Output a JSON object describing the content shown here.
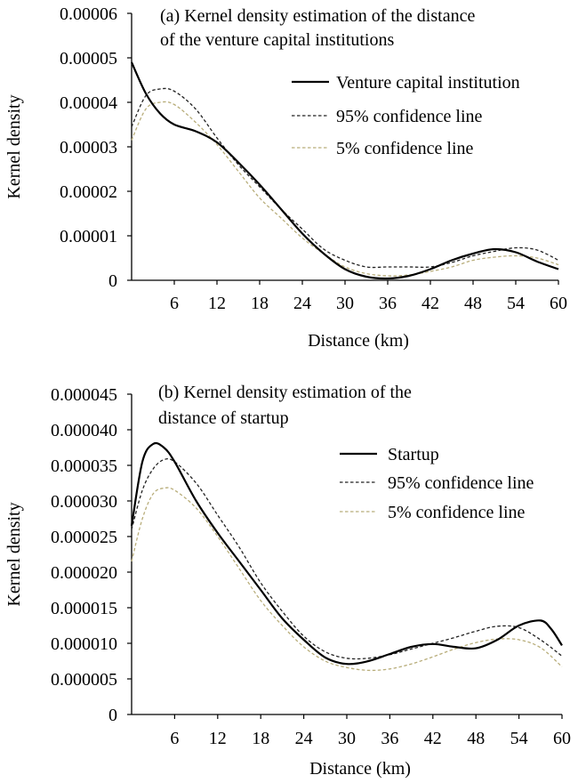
{
  "chart_data": [
    {
      "type": "line",
      "title_lines": [
        "(a) Kernel density estimation of the distance",
        "of the venture capital institutions"
      ],
      "xlabel": "Distance (km)",
      "ylabel": "Kernel density",
      "xlim": [
        0,
        60
      ],
      "ylim": [
        0,
        6e-05
      ],
      "x_ticks": [
        "6",
        "12",
        "18",
        "24",
        "30",
        "36",
        "42",
        "48",
        "54",
        "60"
      ],
      "y_ticks": [
        "0",
        "0.00001",
        "0.00002",
        "0.00003",
        "0.00004",
        "0.00005",
        "0.00006"
      ],
      "grid": false,
      "legend_position": "top-right",
      "series": [
        {
          "name": "Venture capital institution",
          "color": "#000000",
          "style": "solid",
          "x": [
            0,
            2,
            4,
            6,
            9,
            12,
            15,
            18,
            21,
            24,
            27,
            30,
            33,
            36,
            39,
            42,
            45,
            48,
            51,
            54,
            57,
            60
          ],
          "y": [
            4.9e-05,
            4.2e-05,
            3.75e-05,
            3.5e-05,
            3.35e-05,
            3.1e-05,
            2.65e-05,
            2.15e-05,
            1.6e-05,
            1.05e-05,
            6e-06,
            2.5e-06,
            8e-07,
            4e-07,
            1e-06,
            2.5e-06,
            4.5e-06,
            6e-06,
            7e-06,
            6.3e-06,
            4.2e-06,
            2.5e-06
          ]
        },
        {
          "name": "95% confidence line",
          "color": "#222222",
          "style": "dashed",
          "x": [
            0,
            2,
            4,
            6,
            9,
            12,
            15,
            18,
            21,
            24,
            27,
            30,
            33,
            36,
            39,
            42,
            45,
            48,
            51,
            54,
            57,
            60
          ],
          "y": [
            3.45e-05,
            4.15e-05,
            4.3e-05,
            4.25e-05,
            3.85e-05,
            3.2e-05,
            2.6e-05,
            2.1e-05,
            1.6e-05,
            1.15e-05,
            7e-06,
            4.5e-06,
            3e-06,
            3e-06,
            3e-06,
            3e-06,
            4e-06,
            5.5e-06,
            6.5e-06,
            7.3e-06,
            6.8e-06,
            4.5e-06
          ]
        },
        {
          "name": "5% confidence line",
          "color": "#b8ad7a",
          "style": "dashed",
          "x": [
            0,
            2,
            4,
            6,
            9,
            12,
            15,
            18,
            21,
            24,
            27,
            30,
            33,
            36,
            39,
            42,
            45,
            48,
            51,
            54,
            57,
            60
          ],
          "y": [
            3.15e-05,
            3.85e-05,
            4e-05,
            3.95e-05,
            3.55e-05,
            3.05e-05,
            2.45e-05,
            1.85e-05,
            1.4e-05,
            9.5e-06,
            6e-06,
            3e-06,
            1.5e-06,
            1e-06,
            1.2e-06,
            2e-06,
            3e-06,
            4.5e-06,
            5.2e-06,
            5.5e-06,
            5e-06,
            3.5e-06
          ]
        }
      ]
    },
    {
      "type": "line",
      "title_lines": [
        "(b) Kernel density estimation of the",
        "distance of startup"
      ],
      "xlabel": "Distance (km)",
      "ylabel": "Kernel density",
      "xlim": [
        0,
        60
      ],
      "ylim": [
        0,
        4.5e-05
      ],
      "x_ticks": [
        "6",
        "12",
        "18",
        "24",
        "30",
        "36",
        "42",
        "48",
        "54",
        "60"
      ],
      "y_ticks": [
        "0",
        "0.000005",
        "0.000010",
        "0.000015",
        "0.000020",
        "0.000025",
        "0.000030",
        "0.000035",
        "0.000040",
        "0.000045"
      ],
      "grid": false,
      "legend_position": "top-right",
      "series": [
        {
          "name": "Startup",
          "color": "#000000",
          "style": "solid",
          "x": [
            0,
            1.5,
            3,
            4.5,
            6,
            9,
            12,
            15,
            18,
            21,
            24,
            27,
            30,
            33,
            36,
            39,
            42,
            45,
            48,
            51,
            54,
            57,
            58.5,
            60
          ],
          "y": [
            2.65e-05,
            3.55e-05,
            3.8e-05,
            3.75e-05,
            3.55e-05,
            3e-05,
            2.55e-05,
            2.15e-05,
            1.75e-05,
            1.35e-05,
            1.05e-05,
            8e-06,
            7.1e-06,
            7.5e-06,
            8.5e-06,
            9.5e-06,
            9.9e-06,
            9.5e-06,
            9.3e-06,
            1.05e-05,
            1.25e-05,
            1.32e-05,
            1.2e-05,
            9.7e-06
          ]
        },
        {
          "name": "95% confidence line",
          "color": "#222222",
          "style": "dashed",
          "x": [
            0,
            1.5,
            3,
            4.5,
            6,
            9,
            12,
            15,
            18,
            21,
            24,
            27,
            30,
            33,
            36,
            39,
            42,
            45,
            48,
            51,
            54,
            57,
            60
          ],
          "y": [
            2.6e-05,
            3.15e-05,
            3.45e-05,
            3.58e-05,
            3.55e-05,
            3.25e-05,
            2.8e-05,
            2.35e-05,
            1.85e-05,
            1.45e-05,
            1.1e-05,
            8.8e-06,
            7.9e-06,
            7.9e-06,
            8.4e-06,
            9.2e-06,
            1e-05,
            1.08e-05,
            1.17e-05,
            1.24e-05,
            1.22e-05,
            1.05e-05,
            8.2e-06
          ]
        },
        {
          "name": "5% confidence line",
          "color": "#b8ad7a",
          "style": "dashed",
          "x": [
            0,
            1.5,
            3,
            4.5,
            6,
            9,
            12,
            15,
            18,
            21,
            24,
            27,
            30,
            33,
            36,
            39,
            42,
            45,
            48,
            51,
            54,
            57,
            60
          ],
          "y": [
            2.15e-05,
            2.75e-05,
            3.1e-05,
            3.18e-05,
            3.15e-05,
            2.9e-05,
            2.5e-05,
            2.05e-05,
            1.6e-05,
            1.25e-05,
            9.5e-06,
            7.5e-06,
            6.6e-06,
            6.2e-06,
            6.4e-06,
            7.1e-06,
            8.1e-06,
            9.2e-06,
            1.01e-05,
            1.06e-05,
            1.05e-05,
            9.4e-06,
            6.7e-06
          ]
        }
      ]
    }
  ]
}
